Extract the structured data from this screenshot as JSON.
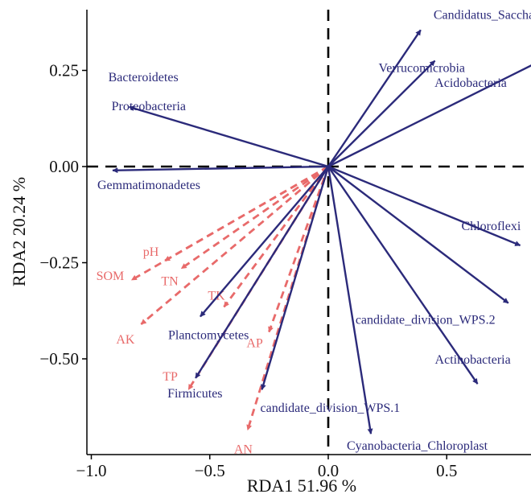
{
  "chart_data": {
    "type": "scatter",
    "subtype": "rda-biplot",
    "title": "",
    "xlabel": "RDA1 51.96 %",
    "ylabel": "RDA2 20.24 %",
    "xlim": [
      -1.0,
      0.85
    ],
    "ylim": [
      -0.73,
      0.4
    ],
    "xticks": [
      -1.0,
      -0.5,
      0.0,
      0.5
    ],
    "xtick_labels": [
      "−1.0",
      "−0.5",
      "0.0",
      "0.5"
    ],
    "yticks": [
      0.25,
      0.0,
      -0.25,
      -0.5
    ],
    "ytick_labels": [
      "0.25",
      "0.00",
      "−0.25",
      "−0.50"
    ],
    "grid": false,
    "origin_lines": "dashed",
    "series": [
      {
        "name": "",
        "color": "#2b2a7a",
        "line_style": "solid",
        "vectors": [
          {
            "label": "Candidatus_Saccharibacteria",
            "x": 0.39,
            "y": 0.355
          },
          {
            "label": "Verrucomicrobia",
            "x": 0.45,
            "y": 0.275
          },
          {
            "label": "Acidobacteria",
            "x": 0.88,
            "y": 0.27
          },
          {
            "label": "Bacteroidetes",
            "x": -0.84,
            "y": 0.155
          },
          {
            "label": "Proteobacteria",
            "x": -0.84,
            "y": 0.155
          },
          {
            "label": "Gemmatimonadetes",
            "x": -0.91,
            "y": -0.01
          },
          {
            "label": "Chloroflexi",
            "x": 0.81,
            "y": -0.205
          },
          {
            "label": "candidate_division_WPS.2",
            "x": 0.76,
            "y": -0.355
          },
          {
            "label": "Actinobacteria",
            "x": 0.63,
            "y": -0.565
          },
          {
            "label": "candidate_division_WPS.1",
            "x": -0.28,
            "y": -0.58
          },
          {
            "label": "Cyanobacteria_Chloroplast",
            "x": 0.18,
            "y": -0.695
          },
          {
            "label": "Planctomycetes",
            "x": -0.54,
            "y": -0.39
          },
          {
            "label": "Firmicutes",
            "x": -0.56,
            "y": -0.55
          }
        ]
      },
      {
        "name": "",
        "color": "#e86a6a",
        "line_style": "dashed",
        "vectors": [
          {
            "label": "pH",
            "x": -0.69,
            "y": -0.245
          },
          {
            "label": "SOM",
            "x": -0.83,
            "y": -0.295
          },
          {
            "label": "TN",
            "x": -0.62,
            "y": -0.265
          },
          {
            "label": "TK",
            "x": -0.44,
            "y": -0.365
          },
          {
            "label": "AK",
            "x": -0.79,
            "y": -0.41
          },
          {
            "label": "AP",
            "x": -0.25,
            "y": -0.43
          },
          {
            "label": "TP",
            "x": -0.59,
            "y": -0.58
          },
          {
            "label": "AN",
            "x": -0.34,
            "y": -0.685
          }
        ]
      }
    ]
  }
}
